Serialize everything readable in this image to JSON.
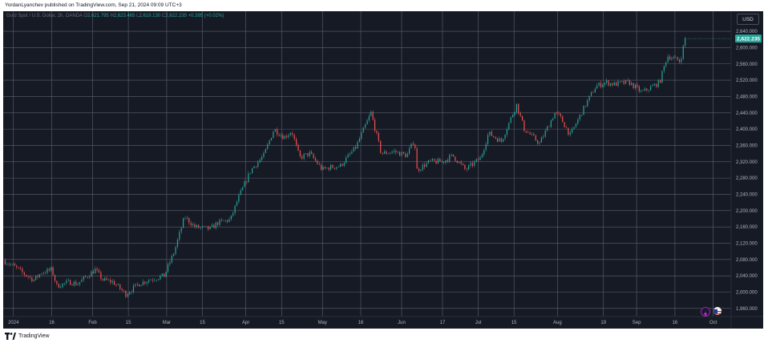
{
  "header": {
    "publisher": "YordanLyanchev published on TradingView.com, Sep 21, 2024 09:09 UTC+3"
  },
  "legend": {
    "symbol": "Gold Spot / U.S. Dollar, 2h, OANDA",
    "o_label": "O",
    "o": "2,621.795",
    "h_label": "H",
    "h": "2,623.465",
    "l_label": "L",
    "l": "2,619.130",
    "c_label": "C",
    "c": "2,622.235",
    "change": "+0.395 (+0.02%)"
  },
  "currency_button": "USD",
  "price_badge": "2,622.235",
  "footer": {
    "brand": "TradingView"
  },
  "icons": {
    "flash": "flash-icon",
    "flag": "flag-icon",
    "logo": "tradingview-logo-icon"
  },
  "colors": {
    "background": "#161a25",
    "up": "#26a69a",
    "down": "#ef5350",
    "grid": "#5d6170",
    "badge": "#26a69a"
  },
  "chart_data": {
    "type": "candlestick",
    "symbol": "XAUUSD",
    "timeframe": "2h",
    "ylim": [
      1940,
      2650
    ],
    "y_ticks": [
      1960,
      2000,
      2040,
      2080,
      2120,
      2160,
      2200,
      2240,
      2280,
      2320,
      2360,
      2400,
      2440,
      2480,
      2520,
      2560,
      2600,
      2640
    ],
    "y_tick_labels": [
      "1,960.000",
      "2,000.000",
      "2,040.000",
      "2,080.000",
      "2,120.000",
      "2,160.000",
      "2,200.000",
      "2,240.000",
      "2,280.000",
      "2,320.000",
      "2,360.000",
      "2,400.000",
      "2,440.000",
      "2,480.000",
      "2,520.000",
      "2,560.000",
      "2,600.000",
      "2,640.000"
    ],
    "x_ticks": [
      {
        "date": "2024-01-01",
        "label": "2024"
      },
      {
        "date": "2024-01-16",
        "label": "16"
      },
      {
        "date": "2024-02-01",
        "label": "Feb"
      },
      {
        "date": "2024-02-15",
        "label": "15"
      },
      {
        "date": "2024-03-01",
        "label": "Mar"
      },
      {
        "date": "2024-03-15",
        "label": "15"
      },
      {
        "date": "2024-04-01",
        "label": "Apr"
      },
      {
        "date": "2024-04-15",
        "label": "15"
      },
      {
        "date": "2024-05-01",
        "label": "May"
      },
      {
        "date": "2024-05-16",
        "label": "16"
      },
      {
        "date": "2024-06-01",
        "label": "Jun"
      },
      {
        "date": "2024-06-17",
        "label": "17"
      },
      {
        "date": "2024-07-01",
        "label": "Jul"
      },
      {
        "date": "2024-07-15",
        "label": "15"
      },
      {
        "date": "2024-08-01",
        "label": "Aug"
      },
      {
        "date": "2024-08-19",
        "label": "19"
      },
      {
        "date": "2024-09-01",
        "label": "Sep"
      },
      {
        "date": "2024-09-16",
        "label": "16"
      },
      {
        "date": "2024-10-01",
        "label": "Oct"
      }
    ],
    "x_range": [
      "2023-12-28",
      "2024-10-08"
    ],
    "last_price": 2622.235,
    "close_path": [
      {
        "date": "2023-12-28",
        "close": 2078
      },
      {
        "date": "2024-01-02",
        "close": 2060
      },
      {
        "date": "2024-01-05",
        "close": 2045
      },
      {
        "date": "2024-01-09",
        "close": 2030
      },
      {
        "date": "2024-01-12",
        "close": 2048
      },
      {
        "date": "2024-01-16",
        "close": 2055
      },
      {
        "date": "2024-01-18",
        "close": 2015
      },
      {
        "date": "2024-01-23",
        "close": 2025
      },
      {
        "date": "2024-01-26",
        "close": 2020
      },
      {
        "date": "2024-01-30",
        "close": 2040
      },
      {
        "date": "2024-02-02",
        "close": 2055
      },
      {
        "date": "2024-02-05",
        "close": 2030
      },
      {
        "date": "2024-02-09",
        "close": 2025
      },
      {
        "date": "2024-02-14",
        "close": 1995
      },
      {
        "date": "2024-02-19",
        "close": 2020
      },
      {
        "date": "2024-02-23",
        "close": 2030
      },
      {
        "date": "2024-02-29",
        "close": 2040
      },
      {
        "date": "2024-03-04",
        "close": 2100
      },
      {
        "date": "2024-03-08",
        "close": 2185
      },
      {
        "date": "2024-03-12",
        "close": 2160
      },
      {
        "date": "2024-03-18",
        "close": 2155
      },
      {
        "date": "2024-03-21",
        "close": 2170
      },
      {
        "date": "2024-03-26",
        "close": 2178
      },
      {
        "date": "2024-03-29",
        "close": 2230
      },
      {
        "date": "2024-04-03",
        "close": 2300
      },
      {
        "date": "2024-04-08",
        "close": 2335
      },
      {
        "date": "2024-04-12",
        "close": 2400
      },
      {
        "date": "2024-04-16",
        "close": 2380
      },
      {
        "date": "2024-04-19",
        "close": 2395
      },
      {
        "date": "2024-04-22",
        "close": 2330
      },
      {
        "date": "2024-04-26",
        "close": 2340
      },
      {
        "date": "2024-05-01",
        "close": 2300
      },
      {
        "date": "2024-05-03",
        "close": 2305
      },
      {
        "date": "2024-05-08",
        "close": 2310
      },
      {
        "date": "2024-05-14",
        "close": 2355
      },
      {
        "date": "2024-05-20",
        "close": 2440
      },
      {
        "date": "2024-05-22",
        "close": 2390
      },
      {
        "date": "2024-05-24",
        "close": 2340
      },
      {
        "date": "2024-05-29",
        "close": 2345
      },
      {
        "date": "2024-06-03",
        "close": 2335
      },
      {
        "date": "2024-06-06",
        "close": 2375
      },
      {
        "date": "2024-06-07",
        "close": 2300
      },
      {
        "date": "2024-06-12",
        "close": 2320
      },
      {
        "date": "2024-06-17",
        "close": 2320
      },
      {
        "date": "2024-06-21",
        "close": 2335
      },
      {
        "date": "2024-06-26",
        "close": 2300
      },
      {
        "date": "2024-07-02",
        "close": 2330
      },
      {
        "date": "2024-07-05",
        "close": 2390
      },
      {
        "date": "2024-07-10",
        "close": 2370
      },
      {
        "date": "2024-07-16",
        "close": 2460
      },
      {
        "date": "2024-07-19",
        "close": 2400
      },
      {
        "date": "2024-07-25",
        "close": 2365
      },
      {
        "date": "2024-07-31",
        "close": 2440
      },
      {
        "date": "2024-08-02",
        "close": 2430
      },
      {
        "date": "2024-08-06",
        "close": 2385
      },
      {
        "date": "2024-08-12",
        "close": 2460
      },
      {
        "date": "2024-08-16",
        "close": 2505
      },
      {
        "date": "2024-08-20",
        "close": 2515
      },
      {
        "date": "2024-08-23",
        "close": 2510
      },
      {
        "date": "2024-08-29",
        "close": 2515
      },
      {
        "date": "2024-09-03",
        "close": 2490
      },
      {
        "date": "2024-09-06",
        "close": 2500
      },
      {
        "date": "2024-09-10",
        "close": 2515
      },
      {
        "date": "2024-09-13",
        "close": 2580
      },
      {
        "date": "2024-09-17",
        "close": 2570
      },
      {
        "date": "2024-09-18",
        "close": 2565
      },
      {
        "date": "2024-09-20",
        "close": 2622.235
      }
    ]
  }
}
